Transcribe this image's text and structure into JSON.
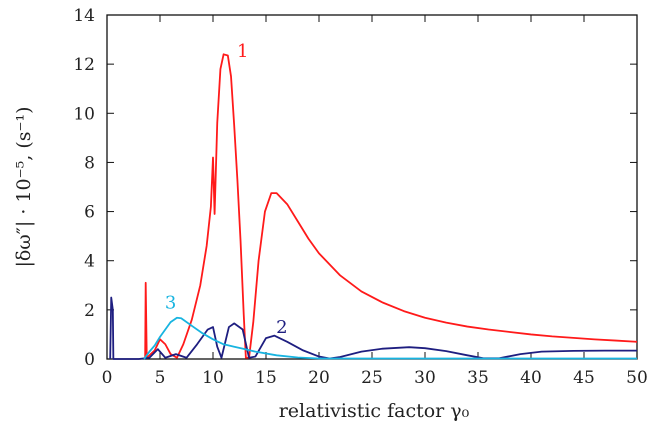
{
  "chart_data": {
    "type": "line",
    "xlabel": "relativistic factor γ₀",
    "ylabel": "|δω″| · 10⁻⁵, (s⁻¹)",
    "xlim": [
      0,
      50
    ],
    "ylim": [
      0,
      14
    ],
    "xticks": [
      "0",
      "5",
      "10",
      "15",
      "20",
      "25",
      "30",
      "35",
      "40",
      "45",
      "50"
    ],
    "yticks": [
      "0",
      "2",
      "4",
      "6",
      "8",
      "10",
      "12",
      "14"
    ],
    "grid": false,
    "series": [
      {
        "name": "1",
        "color": "#ff1a1a",
        "points": [
          [
            3.6,
            0.05
          ],
          [
            3.65,
            3.1
          ],
          [
            3.75,
            0.05
          ],
          [
            4.5,
            0.35
          ],
          [
            5.0,
            0.8
          ],
          [
            5.5,
            0.6
          ],
          [
            6.0,
            0.2
          ],
          [
            6.6,
            0.05
          ],
          [
            7.2,
            0.6
          ],
          [
            8.0,
            1.6
          ],
          [
            8.8,
            3.0
          ],
          [
            9.4,
            4.6
          ],
          [
            9.8,
            6.2
          ],
          [
            10.0,
            8.2
          ],
          [
            10.15,
            5.9
          ],
          [
            10.4,
            9.6
          ],
          [
            10.7,
            11.8
          ],
          [
            11.0,
            12.4
          ],
          [
            11.4,
            12.35
          ],
          [
            11.7,
            11.5
          ],
          [
            12.0,
            9.5
          ],
          [
            12.3,
            7.3
          ],
          [
            12.6,
            4.8
          ],
          [
            12.9,
            1.8
          ],
          [
            13.1,
            0.05
          ],
          [
            13.4,
            0.05
          ],
          [
            13.8,
            1.5
          ],
          [
            14.3,
            4.0
          ],
          [
            14.9,
            6.0
          ],
          [
            15.5,
            6.75
          ],
          [
            16.0,
            6.75
          ],
          [
            17.0,
            6.3
          ],
          [
            18.0,
            5.6
          ],
          [
            19.0,
            4.9
          ],
          [
            20.0,
            4.3
          ],
          [
            22.0,
            3.4
          ],
          [
            24.0,
            2.75
          ],
          [
            26.0,
            2.3
          ],
          [
            28.0,
            1.95
          ],
          [
            30.0,
            1.68
          ],
          [
            32.0,
            1.48
          ],
          [
            34.0,
            1.32
          ],
          [
            36.0,
            1.2
          ],
          [
            38.0,
            1.1
          ],
          [
            40.0,
            1.0
          ],
          [
            42.0,
            0.92
          ],
          [
            44.0,
            0.86
          ],
          [
            46.0,
            0.8
          ],
          [
            48.0,
            0.75
          ],
          [
            50.0,
            0.7
          ]
        ]
      },
      {
        "name": "2",
        "color": "#1e1e80",
        "points": [
          [
            0.3,
            0.0
          ],
          [
            0.4,
            2.5
          ],
          [
            0.55,
            2.0
          ],
          [
            0.6,
            0.0
          ],
          [
            2.0,
            0.0
          ],
          [
            3.0,
            0.0
          ],
          [
            4.0,
            0.05
          ],
          [
            4.8,
            0.4
          ],
          [
            5.5,
            0.05
          ],
          [
            6.5,
            0.2
          ],
          [
            7.5,
            0.05
          ],
          [
            8.5,
            0.6
          ],
          [
            9.5,
            1.2
          ],
          [
            10.0,
            1.3
          ],
          [
            10.4,
            0.5
          ],
          [
            10.8,
            0.05
          ],
          [
            11.5,
            1.3
          ],
          [
            12.0,
            1.45
          ],
          [
            12.8,
            1.2
          ],
          [
            13.4,
            0.05
          ],
          [
            14.0,
            0.1
          ],
          [
            15.0,
            0.85
          ],
          [
            15.8,
            0.95
          ],
          [
            17.0,
            0.7
          ],
          [
            18.5,
            0.35
          ],
          [
            20.0,
            0.1
          ],
          [
            21.0,
            0.02
          ],
          [
            22.0,
            0.08
          ],
          [
            24.0,
            0.3
          ],
          [
            26.0,
            0.42
          ],
          [
            28.5,
            0.48
          ],
          [
            30.0,
            0.44
          ],
          [
            32.0,
            0.32
          ],
          [
            34.0,
            0.15
          ],
          [
            35.5,
            0.03
          ],
          [
            37.0,
            0.03
          ],
          [
            39.0,
            0.2
          ],
          [
            41.0,
            0.3
          ],
          [
            44.0,
            0.33
          ],
          [
            47.0,
            0.34
          ],
          [
            50.0,
            0.34
          ]
        ]
      },
      {
        "name": "3",
        "color": "#18b4e0",
        "points": [
          [
            3.5,
            0.0
          ],
          [
            4.0,
            0.3
          ],
          [
            4.5,
            0.55
          ],
          [
            5.0,
            0.9
          ],
          [
            5.5,
            1.2
          ],
          [
            6.0,
            1.5
          ],
          [
            6.6,
            1.68
          ],
          [
            7.0,
            1.66
          ],
          [
            8.0,
            1.35
          ],
          [
            9.0,
            1.05
          ],
          [
            10.0,
            0.8
          ],
          [
            11.0,
            0.6
          ],
          [
            12.0,
            0.5
          ],
          [
            13.0,
            0.4
          ],
          [
            14.0,
            0.3
          ],
          [
            16.0,
            0.15
          ],
          [
            18.0,
            0.06
          ],
          [
            20.0,
            0.02
          ],
          [
            30.0,
            0.02
          ],
          [
            40.0,
            0.02
          ],
          [
            50.0,
            0.02
          ]
        ]
      }
    ]
  }
}
